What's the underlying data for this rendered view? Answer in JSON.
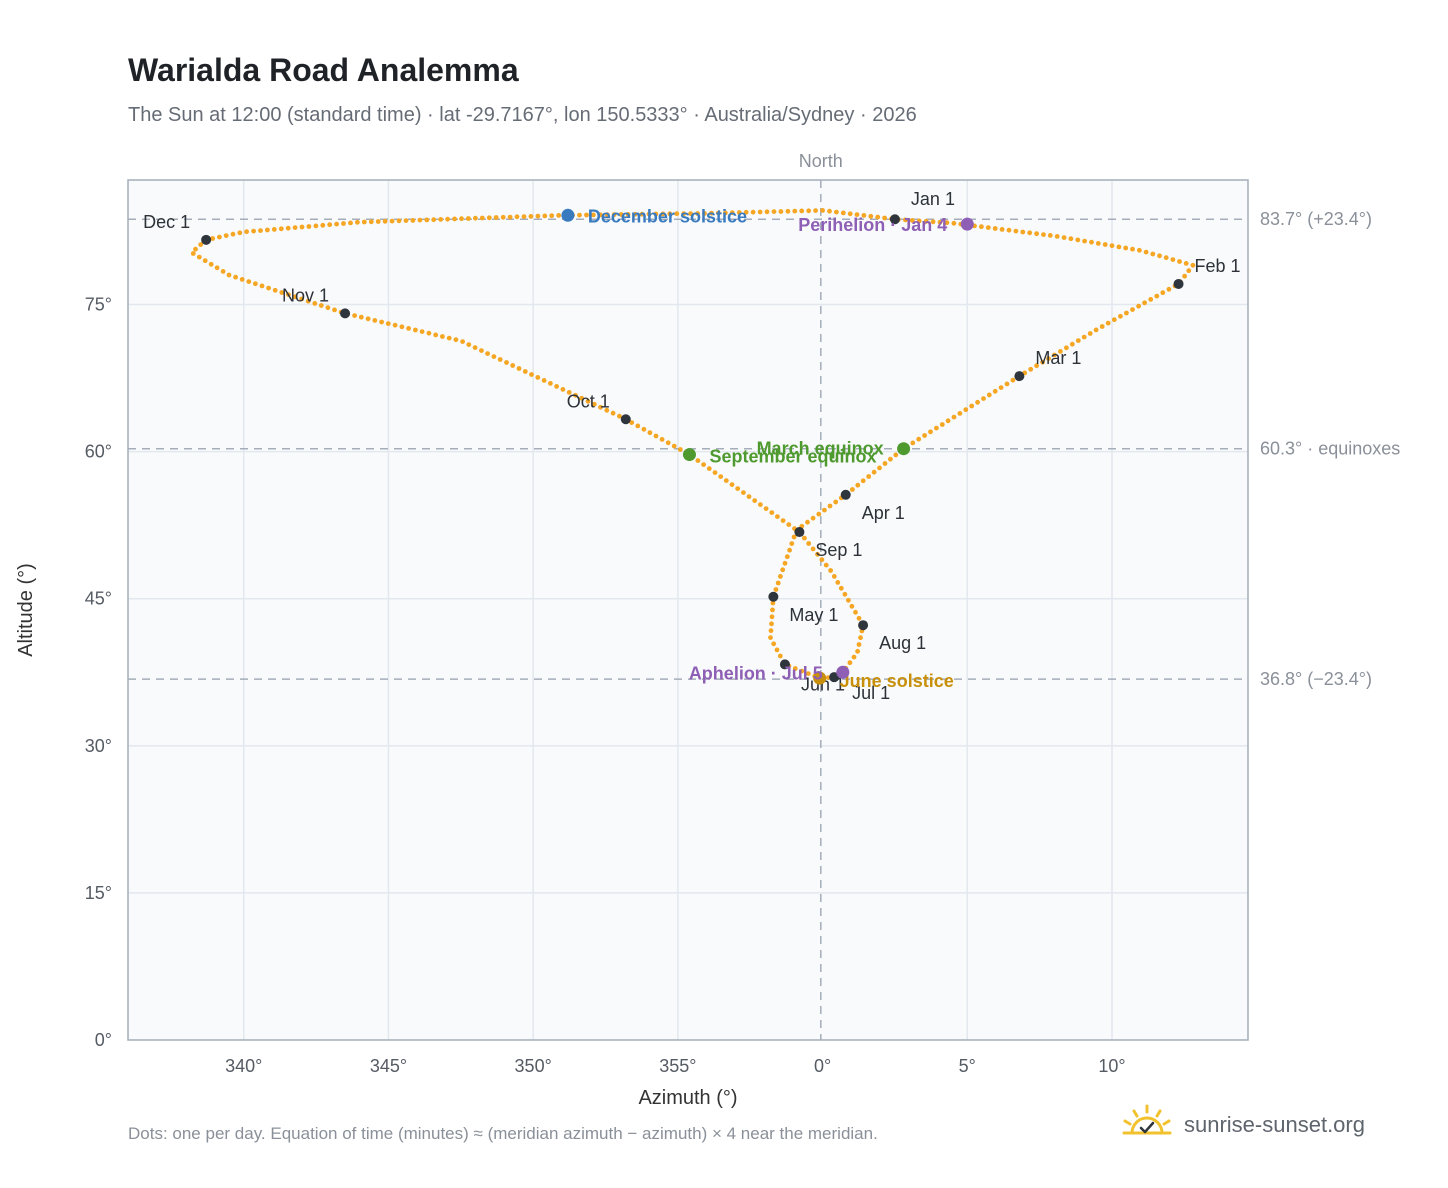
{
  "header": {
    "title": "Warialda Road Analemma",
    "subtitle": "The Sun at 12:00 (standard time) · lat -29.7167°, lon 150.5333° · Australia/Sydney · 2026"
  },
  "footer": {
    "note": "Dots: one per day. Equation of time (minutes) ≈ (meridian azimuth − azimuth) × 4 near the meridian.",
    "brand": "sunrise-sunset.org"
  },
  "colors": {
    "path": "#f5a623",
    "month_dot": "#2f353d",
    "december_solstice": "#3a7bbf",
    "equinox": "#4f9a2f",
    "june_solstice": "#c8900a",
    "perihelion": "#8e5fb5",
    "plot_bg": "#f8fafc",
    "grid": "#e3e8ee",
    "frame": "#a4adb9",
    "ref_line": "#a4adb9"
  },
  "chart_data": {
    "type": "scatter",
    "title": "Warialda Road Analemma",
    "xlabel": "Azimuth (°)",
    "ylabel": "Altitude (°)",
    "xlim": [
      -24.0,
      14.7
    ],
    "ylim": [
      0,
      87.7
    ],
    "grid": true,
    "x_ticks": [
      {
        "value": -20,
        "label": "340°"
      },
      {
        "value": -15,
        "label": "345°"
      },
      {
        "value": -10,
        "label": "350°"
      },
      {
        "value": -5,
        "label": "355°"
      },
      {
        "value": 0,
        "label": "0°"
      },
      {
        "value": 5,
        "label": "5°"
      },
      {
        "value": 10,
        "label": "10°"
      }
    ],
    "y_ticks": [
      {
        "value": 0,
        "label": "0°"
      },
      {
        "value": 15,
        "label": "15°"
      },
      {
        "value": 30,
        "label": "30°"
      },
      {
        "value": 45,
        "label": "45°"
      },
      {
        "value": 60,
        "label": "60°"
      },
      {
        "value": 75,
        "label": "75°"
      }
    ],
    "meridian": {
      "value": 0,
      "label": "North"
    },
    "reference_lines": [
      {
        "value": 83.7,
        "label": "83.7° (+23.4°)"
      },
      {
        "value": 60.3,
        "label": "60.3° · equinoxes"
      },
      {
        "value": 36.8,
        "label": "36.8° (−23.4°)"
      }
    ],
    "daily_path_anchors": [
      {
        "x": 0.0,
        "y": 84.6
      },
      {
        "x": 2.5,
        "y": 83.7
      },
      {
        "x": 4.5,
        "y": 83.3
      },
      {
        "x": 8.0,
        "y": 82.0
      },
      {
        "x": 11.0,
        "y": 80.5
      },
      {
        "x": 12.8,
        "y": 79.0
      },
      {
        "x": 12.3,
        "y": 77.1
      },
      {
        "x": 9.5,
        "y": 72.5
      },
      {
        "x": 6.8,
        "y": 67.7
      },
      {
        "x": 2.8,
        "y": 60.3
      },
      {
        "x": 0.8,
        "y": 55.6
      },
      {
        "x": -0.9,
        "y": 52.0
      },
      {
        "x": -1.7,
        "y": 45.2
      },
      {
        "x": -1.8,
        "y": 41.0
      },
      {
        "x": -1.3,
        "y": 38.3
      },
      {
        "x": -0.1,
        "y": 36.9
      },
      {
        "x": 0.4,
        "y": 37.0
      },
      {
        "x": 0.7,
        "y": 37.5
      },
      {
        "x": 1.2,
        "y": 39.5
      },
      {
        "x": 1.4,
        "y": 42.3
      },
      {
        "x": 0.3,
        "y": 47.8
      },
      {
        "x": -0.8,
        "y": 51.8
      },
      {
        "x": -4.6,
        "y": 59.7
      },
      {
        "x": -6.8,
        "y": 63.3
      },
      {
        "x": -12.5,
        "y": 71.3
      },
      {
        "x": -16.5,
        "y": 74.1
      },
      {
        "x": -20.5,
        "y": 78.0
      },
      {
        "x": -21.8,
        "y": 80.3
      },
      {
        "x": -21.3,
        "y": 81.6
      },
      {
        "x": -20.0,
        "y": 82.4
      },
      {
        "x": -16.0,
        "y": 83.4
      },
      {
        "x": -10.0,
        "y": 84.0
      },
      {
        "x": -9.0,
        "y": 84.1
      },
      {
        "x": -4.0,
        "y": 84.3
      },
      {
        "x": 0.0,
        "y": 84.6
      }
    ],
    "month_markers": [
      {
        "label": "Jan 1",
        "x": 2.5,
        "y": 83.7,
        "anchor": "start",
        "dx": 16,
        "dy": -14
      },
      {
        "label": "Feb 1",
        "x": 12.3,
        "y": 77.1,
        "anchor": "start",
        "dx": 16,
        "dy": -12
      },
      {
        "label": "Mar 1",
        "x": 6.8,
        "y": 67.7,
        "anchor": "start",
        "dx": 16,
        "dy": -12
      },
      {
        "label": "Apr 1",
        "x": 0.8,
        "y": 55.6,
        "anchor": "start",
        "dx": 16,
        "dy": 24
      },
      {
        "label": "May 1",
        "x": -1.7,
        "y": 45.2,
        "anchor": "start",
        "dx": 16,
        "dy": 24
      },
      {
        "label": "Jun 1",
        "x": -1.3,
        "y": 38.3,
        "anchor": "start",
        "dx": 16,
        "dy": 26
      },
      {
        "label": "Jul 1",
        "x": 0.4,
        "y": 37.0,
        "anchor": "start",
        "dx": 18,
        "dy": 22
      },
      {
        "label": "Aug 1",
        "x": 1.4,
        "y": 42.3,
        "anchor": "start",
        "dx": 16,
        "dy": 24
      },
      {
        "label": "Sep 1",
        "x": -0.8,
        "y": 51.8,
        "anchor": "start",
        "dx": 16,
        "dy": 24
      },
      {
        "label": "Oct 1",
        "x": -6.8,
        "y": 63.3,
        "anchor": "end",
        "dx": -16,
        "dy": -12
      },
      {
        "label": "Nov 1",
        "x": -16.5,
        "y": 74.1,
        "anchor": "end",
        "dx": -16,
        "dy": -12
      },
      {
        "label": "Dec 1",
        "x": -21.3,
        "y": 81.6,
        "anchor": "end",
        "dx": -16,
        "dy": -12
      }
    ],
    "events": [
      {
        "label": "December solstice",
        "x": -8.8,
        "y": 84.1,
        "color": "#3a7bbf",
        "anchor": "start",
        "dx": 20,
        "dy": 7
      },
      {
        "label": "Perihelion · Jan 4",
        "x": 5.0,
        "y": 83.2,
        "color": "#8e5fb5",
        "anchor": "end",
        "dx": -20,
        "dy": 7
      },
      {
        "label": "March equinox",
        "x": 2.8,
        "y": 60.3,
        "color": "#4f9a2f",
        "anchor": "end",
        "dx": -20,
        "dy": 6
      },
      {
        "label": "September equinox",
        "x": -4.6,
        "y": 59.7,
        "color": "#4f9a2f",
        "anchor": "start",
        "dx": 20,
        "dy": 8
      },
      {
        "label": "June solstice",
        "x": -0.1,
        "y": 36.9,
        "color": "#c8900a",
        "anchor": "start",
        "dx": 20,
        "dy": 9
      },
      {
        "label": "Aphelion · Jul 5",
        "x": 0.7,
        "y": 37.5,
        "color": "#8e5fb5",
        "anchor": "end",
        "dx": -20,
        "dy": 7
      }
    ]
  }
}
